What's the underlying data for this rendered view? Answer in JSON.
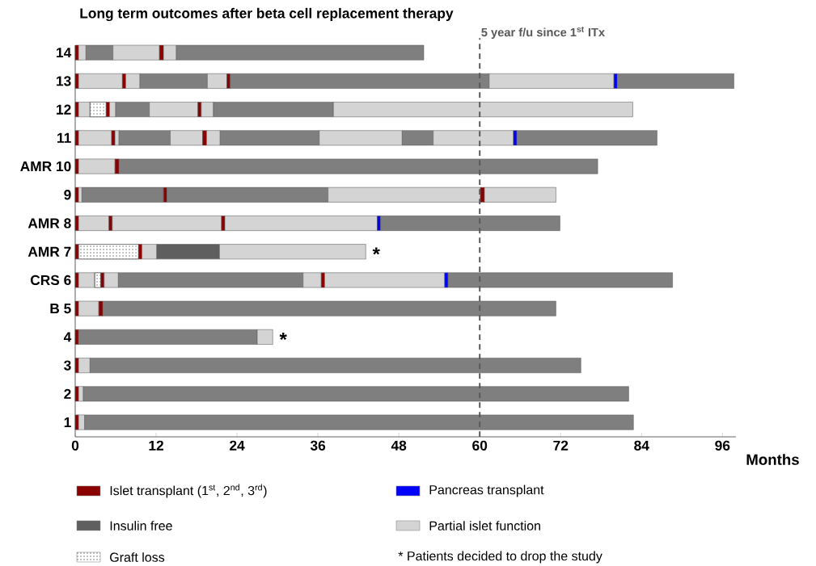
{
  "chart_data": {
    "type": "bar",
    "orientation": "horizontal",
    "stacked": true,
    "title": "Long term outcomes after beta cell replacement therapy",
    "xlabel": "Months",
    "categories": [
      "14",
      "13",
      "12",
      "11",
      "AMR 10",
      "9",
      "AMR 8",
      "AMR 7",
      "CRS 6",
      "B 5",
      "4",
      "3",
      "2",
      "1"
    ],
    "xlim": [
      0,
      98
    ],
    "xticks": [
      0,
      12,
      24,
      36,
      48,
      60,
      72,
      84,
      96
    ],
    "legend": "bottom",
    "series": [
      {
        "values": [
          0.5,
          0.5,
          0.5,
          0.5,
          0.5,
          0.5,
          0.5,
          0.5,
          0.5,
          0.5,
          0.5,
          0.5,
          0.5,
          0.5
        ],
        "color": "#8b0000"
      },
      {
        "values": [
          1.1,
          6.5,
          1.7,
          4.9,
          5.4,
          0.5,
          4.5,
          8.9,
          2.4,
          3.0,
          26.5,
          1.7,
          0.7,
          0.9
        ],
        "colors": [
          "#d4d4d4",
          "#d4d4d4",
          "#d4d4d4",
          "#d4d4d4",
          "#d4d4d4",
          "#d4d4d4",
          "#d4d4d4",
          "#ffffff",
          "#d4d4d4",
          "#d4d4d4",
          "#7f7f7f",
          "#d4d4d4",
          "#d4d4d4",
          "#d4d4d4"
        ]
      },
      {
        "values": [
          4.0,
          0.5,
          2.4,
          0.5,
          0.6,
          12.1,
          0.5,
          0.5,
          0.9,
          0.6,
          2.3,
          72.8,
          80.9,
          81.4
        ],
        "colors": [
          "#7f7f7f",
          "#8b0000",
          "#ffffff",
          "#8b0000",
          "#8b0000",
          "#7f7f7f",
          "#8b0000",
          "#8b0000",
          "#ffffff",
          "#8b0000",
          "#d4d4d4",
          "#7f7f7f",
          "#7f7f7f",
          "#7f7f7f"
        ]
      },
      {
        "values": [
          6.9,
          2.1,
          0.5,
          0.6,
          71.0,
          0.5,
          16.2,
          2.2,
          0.5,
          67.2,
          null,
          null,
          null,
          null
        ],
        "colors": [
          "#d4d4d4",
          "#d4d4d4",
          "#8b0000",
          "#d4d4d4",
          "#7f7f7f",
          "#8b0000",
          "#d4d4d4",
          "#d4d4d4",
          "#8b0000",
          "#7f7f7f",
          null,
          null,
          null,
          null
        ]
      },
      {
        "values": [
          0.6,
          10.0,
          0.9,
          7.6,
          null,
          23.9,
          0.5,
          9.3,
          2.1,
          null,
          null,
          null,
          null,
          null
        ],
        "colors": [
          "#8b0000",
          "#7f7f7f",
          "#d4d4d4",
          "#7f7f7f",
          null,
          "#7f7f7f",
          "#8b0000",
          "#5f5f5f",
          "#d4d4d4",
          null,
          null,
          null,
          null,
          null
        ]
      },
      {
        "values": [
          1.9,
          2.9,
          5.0,
          4.8,
          null,
          22.6,
          22.6,
          21.7,
          27.4,
          null,
          null,
          null,
          null,
          null
        ],
        "colors": [
          "#d4d4d4",
          "#d4d4d4",
          "#7f7f7f",
          "#d4d4d4",
          null,
          "#d4d4d4",
          "#d4d4d4",
          "#d4d4d4",
          "#7f7f7f",
          null,
          null,
          null,
          null,
          null
        ]
      },
      {
        "values": [
          36.7,
          0.5,
          7.2,
          0.6,
          null,
          0.6,
          0.5,
          null,
          2.7,
          null,
          null,
          null,
          null,
          null
        ],
        "colors": [
          "#7f7f7f",
          "#8b0000",
          "#d4d4d4",
          "#8b0000",
          null,
          "#8b0000",
          "#0000ff",
          null,
          "#d4d4d4",
          null,
          null,
          null,
          null,
          null
        ]
      },
      {
        "values": [
          null,
          38.4,
          0.5,
          2.0,
          null,
          10.6,
          26.6,
          null,
          0.5,
          null,
          null,
          null,
          null,
          null
        ],
        "colors": [
          null,
          "#7f7f7f",
          "#8b0000",
          "#d4d4d4",
          null,
          "#d4d4d4",
          "#7f7f7f",
          null,
          "#8b0000",
          null,
          null,
          null,
          null,
          null
        ]
      },
      {
        "values": [
          null,
          18.5,
          1.8,
          14.7,
          null,
          null,
          null,
          null,
          17.8,
          null,
          null,
          null,
          null,
          null
        ],
        "colors": [
          null,
          "#d4d4d4",
          "#d4d4d4",
          "#7f7f7f",
          null,
          null,
          null,
          null,
          "#d4d4d4",
          null,
          null,
          null,
          null,
          null
        ]
      },
      {
        "values": [
          null,
          0.5,
          17.8,
          12.3,
          null,
          null,
          null,
          null,
          0.5,
          null,
          null,
          null,
          null,
          null
        ],
        "colors": [
          null,
          "#0000ff",
          "#7f7f7f",
          "#d4d4d4",
          null,
          null,
          null,
          null,
          "#0000ff",
          null,
          null,
          null,
          null,
          null
        ]
      },
      {
        "values": [
          null,
          17.3,
          44.4,
          4.6,
          null,
          null,
          null,
          null,
          33.3,
          null,
          null,
          null,
          null,
          null
        ],
        "colors": [
          null,
          "#7f7f7f",
          "#d4d4d4",
          "#7f7f7f",
          null,
          null,
          null,
          null,
          "#7f7f7f",
          null,
          null,
          null,
          null,
          null
        ]
      },
      {
        "values": [
          null,
          null,
          null,
          11.9,
          null,
          null,
          null,
          null,
          null,
          null,
          null,
          null,
          null,
          null
        ],
        "color": "#d4d4d4"
      },
      {
        "values": [
          null,
          null,
          null,
          0.5,
          null,
          null,
          null,
          null,
          null,
          null,
          null,
          null,
          null,
          null
        ],
        "color": "#0000ff"
      },
      {
        "values": [
          null,
          null,
          null,
          20.8,
          null,
          null,
          null,
          null,
          null,
          null,
          null,
          null,
          null,
          null
        ],
        "color": "#7f7f7f"
      },
      {
        "name": "Islet transplant (1$^{st}$, 2$^{nd}$, 3$^{rd}$)",
        "color": "#8b0000",
        "values": [
          null,
          null,
          null,
          null,
          null,
          null,
          null,
          null,
          null,
          null,
          null,
          null,
          null,
          null
        ]
      },
      {
        "name": "Pancreas transplant",
        "color": "#0000ff",
        "values": [
          null,
          null,
          null,
          null,
          null,
          null,
          null,
          null,
          null,
          null,
          null,
          null,
          null,
          null
        ]
      },
      {
        "name": "Insulin free",
        "color": "#5f5f5f",
        "values": [
          null,
          null,
          null,
          null,
          null,
          null,
          null,
          null,
          null,
          null,
          null,
          null,
          null,
          null
        ]
      },
      {
        "name": "Partial islet function",
        "color": "#d4d4d4",
        "values": [
          null,
          null,
          null,
          null,
          null,
          null,
          null,
          null,
          null,
          null,
          null,
          null,
          null,
          null
        ]
      },
      {
        "name": "Graft loss",
        "color": "#ffffff",
        "values": [
          null,
          null,
          null,
          null,
          null,
          null,
          null,
          null,
          null,
          null,
          null,
          null,
          null,
          null
        ]
      }
    ],
    "ref_lines": [
      {
        "axis": "x",
        "value": 60,
        "label": "5 year f/u since 1$^{st}$ ITx",
        "color": "#595959",
        "line_style": "dashed"
      }
    ],
    "annotations": [
      {
        "text": "*",
        "x": 43.1,
        "y": "AMR 7"
      },
      {
        "text": "*",
        "x": 29.3,
        "y": "4"
      },
      "* Patients decided to drop the study"
    ]
  }
}
